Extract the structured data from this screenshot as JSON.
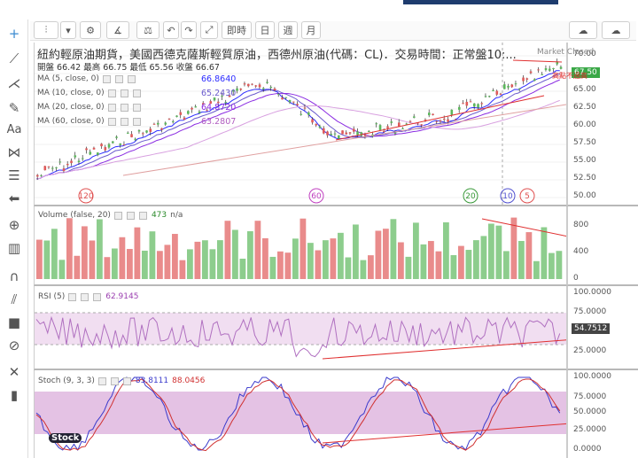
{
  "toolbar": {
    "interval_label": "即時",
    "day_label": "日",
    "week_label": "週",
    "month_label": "月"
  },
  "chart": {
    "title": "紐約輕原油期貨，美國西德克薩斯輕質原油，西德州原油(代碼：CL)．交易時間：正常盤10:...",
    "market_status": "Market Closed",
    "ohlc_text": "開盤 66.42 最高 66.75 最低 65.56 收盤 66.67",
    "annotation": "高點不過高",
    "last_price": "67.50",
    "price_ticks": [
      "70.00",
      "67.50",
      "65.00",
      "62.50",
      "60.00",
      "57.50",
      "55.00",
      "52.50",
      "50.00"
    ],
    "ma": [
      {
        "label": "MA (5, close, 0)",
        "value": "66.8640",
        "color": "#2c2cff"
      },
      {
        "label": "MA (10, close, 0)",
        "value": "65.2430",
        "color": "#6a5acd"
      },
      {
        "label": "MA (20, close, 0)",
        "value": "64.8720",
        "color": "#8a2be2"
      },
      {
        "label": "MA (60, close, 0)",
        "value": "63.2807",
        "color": "#b05cc0"
      }
    ],
    "cycle_markers": [
      {
        "text": "120",
        "color": "#e05050"
      },
      {
        "text": "60",
        "color": "#c040c0"
      },
      {
        "text": "20",
        "color": "#3a9a3a"
      },
      {
        "text": "10",
        "color": "#5050d0"
      },
      {
        "text": "5",
        "color": "#e05050"
      }
    ]
  },
  "volume": {
    "label": "Volume (false, 20)",
    "value": "473",
    "suffix": "n/a",
    "ticks": [
      "800",
      "400",
      "0"
    ]
  },
  "rsi": {
    "label": "RSI (5)",
    "value": "62.9145",
    "last_value": "54.7512",
    "ticks": [
      "100.0000",
      "75.0000",
      "25.0000"
    ]
  },
  "stoch": {
    "label": "Stoch (9, 3, 3)",
    "k": "83.8111",
    "d": "88.0456",
    "ticks": [
      "100.0000",
      "75.0000",
      "50.0000",
      "25.0000",
      "0.0000"
    ],
    "logo": "Stock"
  },
  "colors": {
    "up": "#5cb85c",
    "down": "#e05a5a",
    "band": "#e8c8e8"
  }
}
